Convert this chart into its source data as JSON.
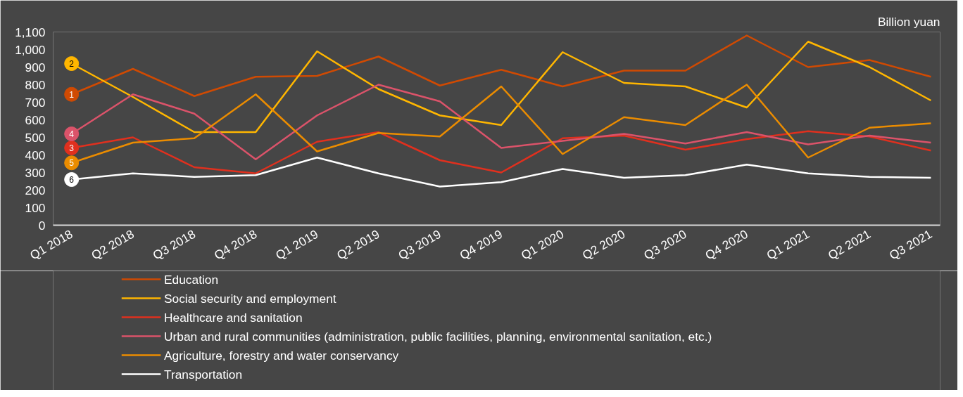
{
  "chart_data": {
    "type": "line",
    "ylabel": "Billion yuan",
    "categories": [
      "Q1 2018",
      "Q2 2018",
      "Q3 2018",
      "Q4 2018",
      "Q1 2019",
      "Q2 2019",
      "Q3 2019",
      "Q4 2019",
      "Q1 2020",
      "Q2 2020",
      "Q3 2020",
      "Q4 2020",
      "Q1 2021",
      "Q2 2021",
      "Q3 2021"
    ],
    "series": [
      {
        "name": "Education",
        "color": "#d04a02",
        "values": [
          745,
          890,
          735,
          845,
          850,
          960,
          795,
          885,
          790,
          880,
          880,
          1080,
          900,
          940,
          845
        ]
      },
      {
        "name": "Social security and employment",
        "color": "#ffb600",
        "values": [
          920,
          730,
          530,
          530,
          990,
          775,
          625,
          570,
          985,
          810,
          790,
          670,
          1045,
          900,
          710
        ]
      },
      {
        "name": "Healthcare and sanitation",
        "color": "#e0301e",
        "values": [
          440,
          500,
          330,
          295,
          475,
          530,
          370,
          300,
          495,
          510,
          430,
          490,
          535,
          505,
          425
        ]
      },
      {
        "name": "Urban and rural communities (administration, public facilities, planning, environmental sanitation, etc.)",
        "color": "#db536a",
        "values": [
          520,
          745,
          635,
          375,
          625,
          800,
          705,
          440,
          480,
          520,
          465,
          530,
          460,
          510,
          470
        ]
      },
      {
        "name": "Agriculture, forestry and water conservancy",
        "color": "#eb8c00",
        "values": [
          355,
          470,
          495,
          745,
          420,
          525,
          505,
          790,
          405,
          615,
          570,
          800,
          385,
          555,
          580
        ]
      },
      {
        "name": "Transportation",
        "color": "#ffffff",
        "values": [
          260,
          295,
          275,
          285,
          385,
          295,
          220,
          245,
          320,
          270,
          285,
          345,
          295,
          275,
          270
        ]
      }
    ],
    "ylim": [
      0,
      1100
    ],
    "yticks": [
      0,
      100,
      200,
      300,
      400,
      500,
      600,
      700,
      800,
      900,
      {
        "value": 1000,
        "label": "1,000"
      },
      {
        "value": 1100,
        "label": "1,100"
      }
    ],
    "annotations": [
      {
        "text": "1",
        "x": "Q1 2018",
        "y": 745
      },
      {
        "text": "2",
        "x": "Q1 2018",
        "y": 920
      },
      {
        "text": "3",
        "x": "Q1 2018",
        "y": 440
      },
      {
        "text": "4",
        "x": "Q1 2018",
        "y": 520
      },
      {
        "text": "5",
        "x": "Q1 2018",
        "y": 355
      },
      {
        "text": "6",
        "x": "Q1 2018",
        "y": 260
      }
    ],
    "grid": false,
    "legend": "bottom",
    "marker": "none",
    "line_style": "solid"
  }
}
